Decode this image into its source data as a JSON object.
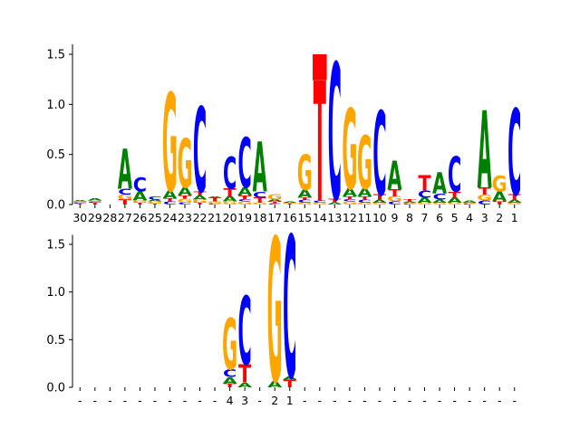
{
  "colors": {
    "A": "#008000",
    "C": "#0000ff",
    "G": "#ffa500",
    "T": "#ff0000"
  },
  "chart_data": [
    {
      "type": "sequence-logo",
      "ylim": [
        0,
        1.6
      ],
      "yticks": [
        "0.0",
        "0.5",
        "1.0",
        "1.5"
      ],
      "positions": [
        "30",
        "29",
        "28",
        "27",
        "26",
        "25",
        "24",
        "23",
        "22",
        "21",
        "20",
        "19",
        "18",
        "17",
        "16",
        "15",
        "14",
        "13",
        "12",
        "11",
        "10",
        "9",
        "8",
        "7",
        "6",
        "5",
        "4",
        "3",
        "2",
        "1"
      ],
      "stacks": [
        [
          [
            "T",
            0.01
          ],
          [
            "C",
            0.01
          ],
          [
            "G",
            0.01
          ],
          [
            "A",
            0.01
          ]
        ],
        [
          [
            "T",
            0.02
          ],
          [
            "C",
            0.01
          ],
          [
            "G",
            0.01
          ],
          [
            "A",
            0.02
          ]
        ],
        [],
        [
          [
            "T",
            0.05
          ],
          [
            "G",
            0.05
          ],
          [
            "C",
            0.06
          ],
          [
            "A",
            0.4
          ]
        ],
        [
          [
            "T",
            0.02
          ],
          [
            "G",
            0.02
          ],
          [
            "A",
            0.09
          ],
          [
            "C",
            0.14
          ]
        ],
        [
          [
            "T",
            0.01
          ],
          [
            "G",
            0.02
          ],
          [
            "A",
            0.02
          ],
          [
            "C",
            0.03
          ]
        ],
        [
          [
            "C",
            0.03
          ],
          [
            "T",
            0.03
          ],
          [
            "A",
            0.08
          ],
          [
            "G",
            0.98
          ]
        ],
        [
          [
            "C",
            0.02
          ],
          [
            "G",
            0.04
          ],
          [
            "T",
            0.03
          ],
          [
            "A",
            0.08
          ],
          [
            "G",
            0.49
          ]
        ],
        [
          [
            "T",
            0.02
          ],
          [
            "G",
            0.03
          ],
          [
            "A",
            0.04
          ],
          [
            "T",
            0.04
          ],
          [
            "C",
            0.85
          ]
        ],
        [
          [
            "C",
            0.01
          ],
          [
            "G",
            0.02
          ],
          [
            "T",
            0.04
          ],
          [
            "A",
            0.01
          ]
        ],
        [
          [
            "G",
            0.03
          ],
          [
            "A",
            0.05
          ],
          [
            "T",
            0.08
          ],
          [
            "C",
            0.32
          ]
        ],
        [
          [
            "G",
            0.03
          ],
          [
            "C",
            0.02
          ],
          [
            "T",
            0.04
          ],
          [
            "A",
            0.08
          ],
          [
            "C",
            0.5
          ]
        ],
        [
          [
            "G",
            0.02
          ],
          [
            "T",
            0.05
          ],
          [
            "C",
            0.06
          ],
          [
            "A",
            0.5
          ]
        ],
        [
          [
            "C",
            0.01
          ],
          [
            "T",
            0.02
          ],
          [
            "A",
            0.02
          ],
          [
            "G",
            0.05
          ]
        ],
        [
          [
            "T",
            0.01
          ],
          [
            "G",
            0.01
          ],
          [
            "A",
            0.01
          ]
        ],
        [
          [
            "G",
            0.02
          ],
          [
            "C",
            0.03
          ],
          [
            "T",
            0.02
          ],
          [
            "A",
            0.08
          ],
          [
            "G",
            0.35
          ]
        ],
        [
          [
            "G",
            0.02
          ],
          [
            "C",
            0.02
          ],
          [
            "T",
            1.2
          ],
          [
            "T",
            0.26
          ]
        ],
        [
          [
            "A",
            0.02
          ],
          [
            "T",
            0.04
          ],
          [
            "C",
            1.36
          ]
        ],
        [
          [
            "G",
            0.03
          ],
          [
            "C",
            0.02
          ],
          [
            "T",
            0.03
          ],
          [
            "A",
            0.08
          ],
          [
            "G",
            0.8
          ]
        ],
        [
          [
            "G",
            0.02
          ],
          [
            "C",
            0.03
          ],
          [
            "T",
            0.03
          ],
          [
            "A",
            0.08
          ],
          [
            "G",
            0.53
          ]
        ],
        [
          [
            "G",
            0.02
          ],
          [
            "A",
            0.03
          ],
          [
            "T",
            0.05
          ],
          [
            "C",
            0.84
          ]
        ],
        [
          [
            "C",
            0.03
          ],
          [
            "G",
            0.05
          ],
          [
            "T",
            0.07
          ],
          [
            "A",
            0.29
          ]
        ],
        [
          [
            "C",
            0.01
          ],
          [
            "G",
            0.01
          ],
          [
            "A",
            0.01
          ],
          [
            "T",
            0.02
          ]
        ],
        [
          [
            "G",
            0.02
          ],
          [
            "A",
            0.05
          ],
          [
            "C",
            0.07
          ],
          [
            "T",
            0.15
          ]
        ],
        [
          [
            "G",
            0.02
          ],
          [
            "A",
            0.03
          ],
          [
            "C",
            0.06
          ],
          [
            "A",
            0.21
          ]
        ],
        [
          [
            "G",
            0.02
          ],
          [
            "A",
            0.05
          ],
          [
            "T",
            0.06
          ],
          [
            "C",
            0.35
          ]
        ],
        [
          [
            "C",
            0.01
          ],
          [
            "G",
            0.01
          ],
          [
            "A",
            0.02
          ]
        ],
        [
          [
            "C",
            0.04
          ],
          [
            "G",
            0.06
          ],
          [
            "T",
            0.07
          ],
          [
            "A",
            0.77
          ]
        ],
        [
          [
            "T",
            0.03
          ],
          [
            "A",
            0.1
          ],
          [
            "G",
            0.16
          ]
        ],
        [
          [
            "G",
            0.02
          ],
          [
            "A",
            0.03
          ],
          [
            "T",
            0.05
          ],
          [
            "C",
            0.86
          ]
        ]
      ]
    },
    {
      "type": "sequence-logo",
      "ylim": [
        0,
        1.6
      ],
      "yticks": [
        "0.0",
        "0.5",
        "1.0",
        "1.5"
      ],
      "positions": [
        "-",
        "-",
        "-",
        "-",
        "-",
        "-",
        "-",
        "-",
        "-",
        "-",
        "4",
        "3",
        "-",
        "2",
        "1",
        "-",
        "-",
        "-",
        "-",
        "-",
        "-",
        "-",
        "-",
        "-",
        "-",
        "-",
        "-",
        "-",
        "-",
        "-"
      ],
      "stacks": [
        [],
        [],
        [],
        [],
        [],
        [],
        [],
        [],
        [],
        [],
        [
          [
            "T",
            0.04
          ],
          [
            "A",
            0.07
          ],
          [
            "C",
            0.08
          ],
          [
            "G",
            0.54
          ]
        ],
        [
          [
            "A",
            0.05
          ],
          [
            "T",
            0.19
          ],
          [
            "C",
            0.72
          ]
        ],
        [],
        [
          [
            "A",
            0.07
          ],
          [
            "G",
            1.51
          ]
        ],
        [
          [
            "T",
            0.08
          ],
          [
            "A",
            0.03
          ],
          [
            "C",
            1.49
          ]
        ],
        [],
        [],
        [],
        [],
        [],
        [],
        [],
        [],
        [],
        [],
        [],
        [],
        [],
        [],
        []
      ]
    }
  ]
}
